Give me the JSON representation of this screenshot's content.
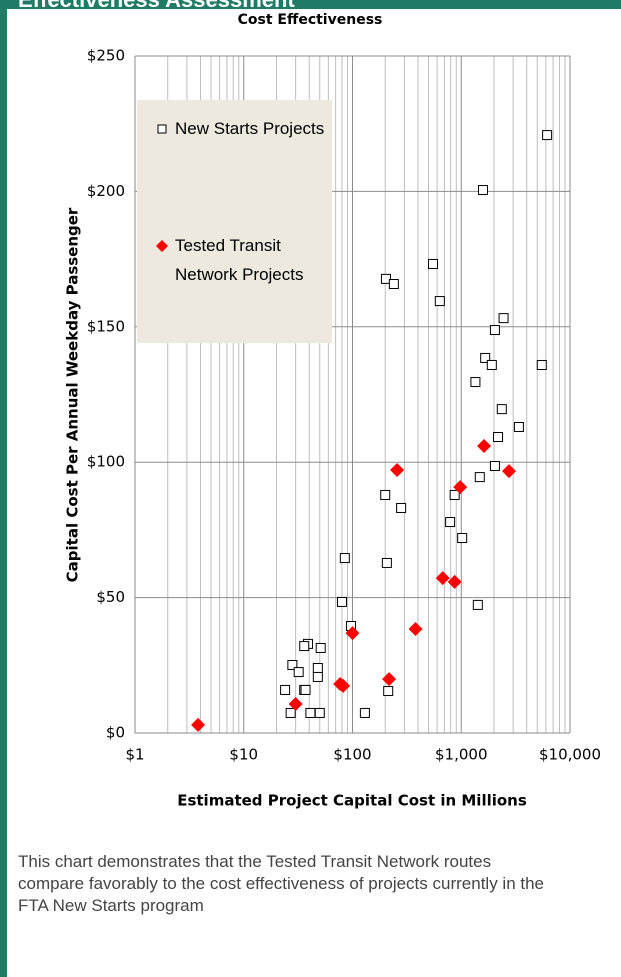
{
  "header": {
    "title": "Effectiveness Assessment"
  },
  "chart_data": {
    "type": "scatter",
    "title": "Cost Effectiveness",
    "x_label": "Estimated Project Capital Cost in Millions",
    "y_label": "Capital Cost Per  Annual Weekday Passenger",
    "xscale": "log",
    "xlim": [
      1,
      10000
    ],
    "xticks": [
      {
        "value": 1,
        "label": "$1"
      },
      {
        "value": 10,
        "label": "$10"
      },
      {
        "value": 100,
        "label": "$100"
      },
      {
        "value": 1000,
        "label": "$1,000"
      },
      {
        "value": 10000,
        "label": "$10,000"
      }
    ],
    "ylim": [
      0,
      250
    ],
    "yticks": [
      {
        "value": 0,
        "label": "$0"
      },
      {
        "value": 50,
        "label": "$50"
      },
      {
        "value": 100,
        "label": "$100"
      },
      {
        "value": 150,
        "label": "$150"
      },
      {
        "value": 200,
        "label": "$200"
      },
      {
        "value": 250,
        "label": "$250"
      }
    ],
    "grid": true,
    "legend": "upper left",
    "series": [
      {
        "name": "New Starts Projects",
        "color": "#000000",
        "marker": "square",
        "x": [
          6160,
          1585,
          203,
          240,
          550,
          635,
          2450,
          2040,
          1660,
          1910,
          5500,
          1350,
          2360,
          3390,
          2180,
          2040,
          1480,
          200,
          870,
          280,
          790,
          1020,
          85,
          207,
          80,
          1420,
          97,
          39,
          36,
          51,
          28,
          48,
          48,
          32,
          36,
          37,
          24,
          213,
          27,
          41,
          50,
          130
        ],
        "values": [
          220.8,
          200.5,
          167.7,
          165.8,
          173.2,
          159.5,
          153.2,
          148.8,
          138.5,
          135.9,
          135.9,
          129.6,
          119.6,
          113,
          109.3,
          98.6,
          94.5,
          87.9,
          87.9,
          83.1,
          77.9,
          72,
          64.6,
          62.8,
          48.4,
          47.3,
          39.5,
          32.9,
          32.1,
          31.4,
          25.1,
          24,
          20.7,
          22.5,
          15.9,
          15.9,
          15.9,
          15.5,
          7.4,
          7.4,
          7.4,
          7.4
        ]
      },
      {
        "name": "Tested Transit Network Projects",
        "color": "#ff0000",
        "marker": "diamond",
        "x": [
          3.8,
          30,
          77,
          82,
          100,
          217,
          257,
          380,
          676,
          870,
          978,
          1620,
          2750
        ],
        "values": [
          3,
          10.7,
          18.1,
          17.4,
          36.9,
          19.9,
          97.1,
          38.4,
          57.2,
          55.8,
          90.8,
          106,
          96.7
        ]
      }
    ]
  },
  "caption": "This chart demonstrates that the Tested Transit Network routes compare favorably to the cost effectiveness of projects currently in the FTA New Starts program"
}
